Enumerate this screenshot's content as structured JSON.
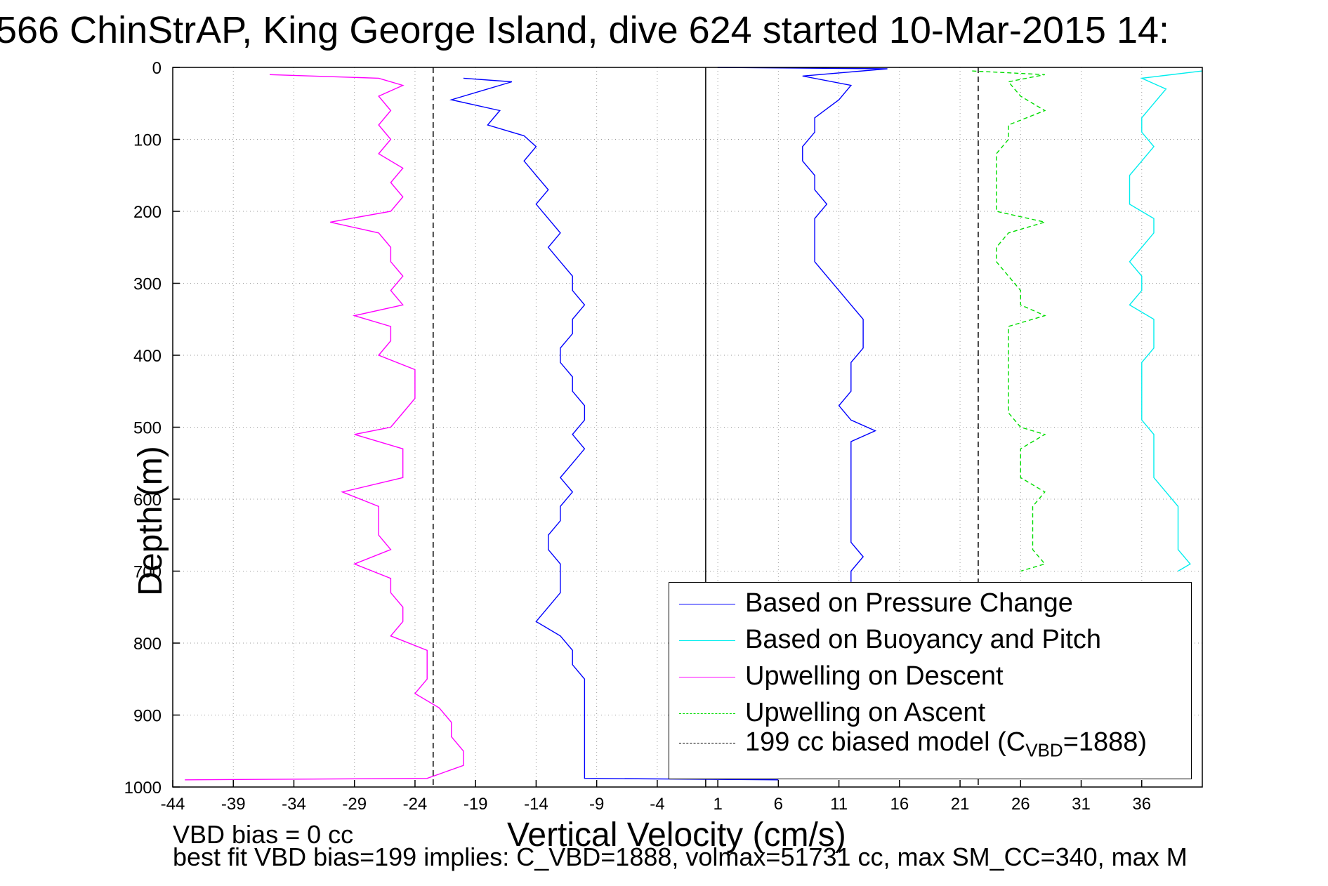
{
  "title": "566 ChinStrAP, King George Island, dive 624 started 10-Mar-2015 14:",
  "notes": {
    "line1": "VBD bias = 0 cc",
    "line2": "best fit VBD bias=199 implies: C_VBD=1888, volmax=51731 cc, max SM_CC=340, max M"
  },
  "chart_data": {
    "type": "line",
    "xlabel": "Vertical Velocity (cm/s)",
    "ylabel": "Depth (m)",
    "xlim": [
      -44,
      41
    ],
    "ylim": [
      1000,
      0
    ],
    "x_ticks": [
      -44,
      -39,
      -34,
      -29,
      -24,
      -19,
      -14,
      -9,
      -4,
      1,
      6,
      11,
      16,
      21,
      26,
      31,
      36
    ],
    "y_ticks": [
      0,
      100,
      200,
      300,
      400,
      500,
      600,
      700,
      800,
      900,
      1000
    ],
    "grid": true,
    "legend_location": "bottom-right",
    "reference_lines": [
      {
        "x": 0,
        "style": "solid",
        "color": "#000000"
      },
      {
        "x": -22.5,
        "style": "dashed",
        "color": "#000000"
      },
      {
        "x": 22.5,
        "style": "dashed",
        "color": "#000000"
      }
    ],
    "series": [
      {
        "name": "Based on Pressure Change",
        "color": "#0000ff",
        "style": "solid",
        "points": [
          [
            -20,
            15
          ],
          [
            -16,
            20
          ],
          [
            -21,
            45
          ],
          [
            -17,
            60
          ],
          [
            -18,
            80
          ],
          [
            -15,
            95
          ],
          [
            -14,
            110
          ],
          [
            -15,
            130
          ],
          [
            -14,
            150
          ],
          [
            -13,
            170
          ],
          [
            -14,
            190
          ],
          [
            -13,
            210
          ],
          [
            -12,
            230
          ],
          [
            -13,
            250
          ],
          [
            -12,
            270
          ],
          [
            -11,
            290
          ],
          [
            -11,
            310
          ],
          [
            -10,
            330
          ],
          [
            -11,
            350
          ],
          [
            -11,
            370
          ],
          [
            -12,
            390
          ],
          [
            -12,
            410
          ],
          [
            -11,
            430
          ],
          [
            -11,
            450
          ],
          [
            -10,
            470
          ],
          [
            -10,
            490
          ],
          [
            -11,
            510
          ],
          [
            -10,
            530
          ],
          [
            -11,
            550
          ],
          [
            -12,
            570
          ],
          [
            -11,
            590
          ],
          [
            -12,
            610
          ],
          [
            -12,
            630
          ],
          [
            -13,
            650
          ],
          [
            -13,
            670
          ],
          [
            -12,
            690
          ],
          [
            -12,
            710
          ],
          [
            -12,
            730
          ],
          [
            -13,
            750
          ],
          [
            -14,
            770
          ],
          [
            -12,
            790
          ],
          [
            -11,
            810
          ],
          [
            -11,
            830
          ],
          [
            -10,
            850
          ],
          [
            -10,
            870
          ],
          [
            -10,
            890
          ],
          [
            -10,
            910
          ],
          [
            -10,
            930
          ],
          [
            -10,
            950
          ],
          [
            -10,
            970
          ],
          [
            -10,
            988
          ],
          [
            6,
            990
          ],
          [
            1,
            0
          ],
          [
            15,
            2
          ],
          [
            8,
            12
          ],
          [
            12,
            25
          ],
          [
            11,
            45
          ],
          [
            9,
            70
          ],
          [
            9,
            90
          ],
          [
            8,
            110
          ],
          [
            8,
            130
          ],
          [
            9,
            150
          ],
          [
            9,
            170
          ],
          [
            10,
            190
          ],
          [
            9,
            210
          ],
          [
            9,
            230
          ],
          [
            9,
            250
          ],
          [
            9,
            270
          ],
          [
            10,
            290
          ],
          [
            11,
            310
          ],
          [
            12,
            330
          ],
          [
            13,
            350
          ],
          [
            13,
            370
          ],
          [
            13,
            390
          ],
          [
            12,
            410
          ],
          [
            12,
            430
          ],
          [
            12,
            450
          ],
          [
            11,
            470
          ],
          [
            12,
            490
          ],
          [
            14,
            505
          ],
          [
            12,
            520
          ],
          [
            12,
            540
          ],
          [
            12,
            560
          ],
          [
            12,
            580
          ],
          [
            12,
            600
          ],
          [
            12,
            620
          ],
          [
            12,
            640
          ],
          [
            12,
            660
          ],
          [
            13,
            680
          ],
          [
            12,
            700
          ],
          [
            12,
            715
          ]
        ]
      },
      {
        "name": "Based on Buoyancy and Pitch",
        "color": "#00eeee",
        "style": "solid",
        "points": [
          [
            41,
            5
          ],
          [
            36,
            15
          ],
          [
            38,
            30
          ],
          [
            37,
            50
          ],
          [
            36,
            70
          ],
          [
            36,
            90
          ],
          [
            37,
            110
          ],
          [
            36,
            130
          ],
          [
            35,
            150
          ],
          [
            35,
            170
          ],
          [
            35,
            190
          ],
          [
            37,
            210
          ],
          [
            37,
            230
          ],
          [
            36,
            250
          ],
          [
            35,
            270
          ],
          [
            36,
            290
          ],
          [
            36,
            310
          ],
          [
            35,
            330
          ],
          [
            37,
            350
          ],
          [
            37,
            370
          ],
          [
            37,
            390
          ],
          [
            36,
            410
          ],
          [
            36,
            430
          ],
          [
            36,
            450
          ],
          [
            36,
            470
          ],
          [
            36,
            490
          ],
          [
            37,
            510
          ],
          [
            37,
            530
          ],
          [
            37,
            550
          ],
          [
            37,
            570
          ],
          [
            38,
            590
          ],
          [
            39,
            610
          ],
          [
            39,
            630
          ],
          [
            39,
            650
          ],
          [
            39,
            670
          ],
          [
            40,
            690
          ],
          [
            39,
            700
          ]
        ]
      },
      {
        "name": "Upwelling on Descent",
        "color": "#ff00ff",
        "style": "solid",
        "points": [
          [
            -36,
            10
          ],
          [
            -27,
            15
          ],
          [
            -25,
            25
          ],
          [
            -27,
            40
          ],
          [
            -26,
            60
          ],
          [
            -27,
            80
          ],
          [
            -26,
            100
          ],
          [
            -27,
            120
          ],
          [
            -25,
            140
          ],
          [
            -26,
            160
          ],
          [
            -25,
            180
          ],
          [
            -26,
            200
          ],
          [
            -31,
            215
          ],
          [
            -27,
            230
          ],
          [
            -26,
            250
          ],
          [
            -26,
            270
          ],
          [
            -25,
            290
          ],
          [
            -26,
            310
          ],
          [
            -25,
            330
          ],
          [
            -29,
            345
          ],
          [
            -26,
            360
          ],
          [
            -26,
            380
          ],
          [
            -27,
            400
          ],
          [
            -24,
            420
          ],
          [
            -24,
            440
          ],
          [
            -24,
            460
          ],
          [
            -25,
            480
          ],
          [
            -26,
            500
          ],
          [
            -29,
            510
          ],
          [
            -25,
            530
          ],
          [
            -25,
            550
          ],
          [
            -25,
            570
          ],
          [
            -30,
            590
          ],
          [
            -27,
            610
          ],
          [
            -27,
            630
          ],
          [
            -27,
            650
          ],
          [
            -26,
            670
          ],
          [
            -29,
            690
          ],
          [
            -26,
            710
          ],
          [
            -26,
            730
          ],
          [
            -25,
            750
          ],
          [
            -25,
            770
          ],
          [
            -26,
            790
          ],
          [
            -23,
            810
          ],
          [
            -23,
            830
          ],
          [
            -23,
            850
          ],
          [
            -24,
            870
          ],
          [
            -22,
            890
          ],
          [
            -21,
            910
          ],
          [
            -21,
            930
          ],
          [
            -20,
            950
          ],
          [
            -20,
            970
          ],
          [
            -23,
            988
          ],
          [
            -43,
            990
          ]
        ]
      },
      {
        "name": "Upwelling on Ascent",
        "color": "#00dd00",
        "style": "dashed",
        "points": [
          [
            22,
            5
          ],
          [
            28,
            10
          ],
          [
            25,
            20
          ],
          [
            26,
            40
          ],
          [
            28,
            60
          ],
          [
            25,
            80
          ],
          [
            25,
            100
          ],
          [
            24,
            120
          ],
          [
            24,
            140
          ],
          [
            24,
            160
          ],
          [
            24,
            180
          ],
          [
            24,
            200
          ],
          [
            28,
            215
          ],
          [
            25,
            230
          ],
          [
            24,
            250
          ],
          [
            24,
            270
          ],
          [
            25,
            290
          ],
          [
            26,
            310
          ],
          [
            26,
            330
          ],
          [
            28,
            345
          ],
          [
            25,
            360
          ],
          [
            25,
            380
          ],
          [
            25,
            400
          ],
          [
            25,
            420
          ],
          [
            25,
            440
          ],
          [
            25,
            460
          ],
          [
            25,
            480
          ],
          [
            26,
            500
          ],
          [
            28,
            510
          ],
          [
            26,
            530
          ],
          [
            26,
            550
          ],
          [
            26,
            570
          ],
          [
            28,
            590
          ],
          [
            27,
            610
          ],
          [
            27,
            630
          ],
          [
            27,
            650
          ],
          [
            27,
            670
          ],
          [
            28,
            690
          ],
          [
            26,
            700
          ]
        ]
      },
      {
        "name": "199 cc biased model (C_VBD=1888)",
        "color": "#000000",
        "style": "dashed",
        "points": [
          [
            -22.5,
            0
          ],
          [
            -22.5,
            1000
          ],
          [
            22.5,
            0
          ],
          [
            22.5,
            1000
          ]
        ]
      }
    ]
  },
  "legend": [
    {
      "label": "Based on Pressure Change",
      "color": "#0000ff",
      "style": "solid"
    },
    {
      "label": "Based on Buoyancy and Pitch",
      "color": "#00eeee",
      "style": "solid"
    },
    {
      "label": "Upwelling on Descent",
      "color": "#ff00ff",
      "style": "solid"
    },
    {
      "label": "Upwelling on Ascent",
      "color": "#00dd00",
      "style": "dashed"
    },
    {
      "label": "199 cc biased model (C",
      "sub": "VBD",
      "tail": "=1888)",
      "color": "#000000",
      "style": "dashed"
    }
  ]
}
